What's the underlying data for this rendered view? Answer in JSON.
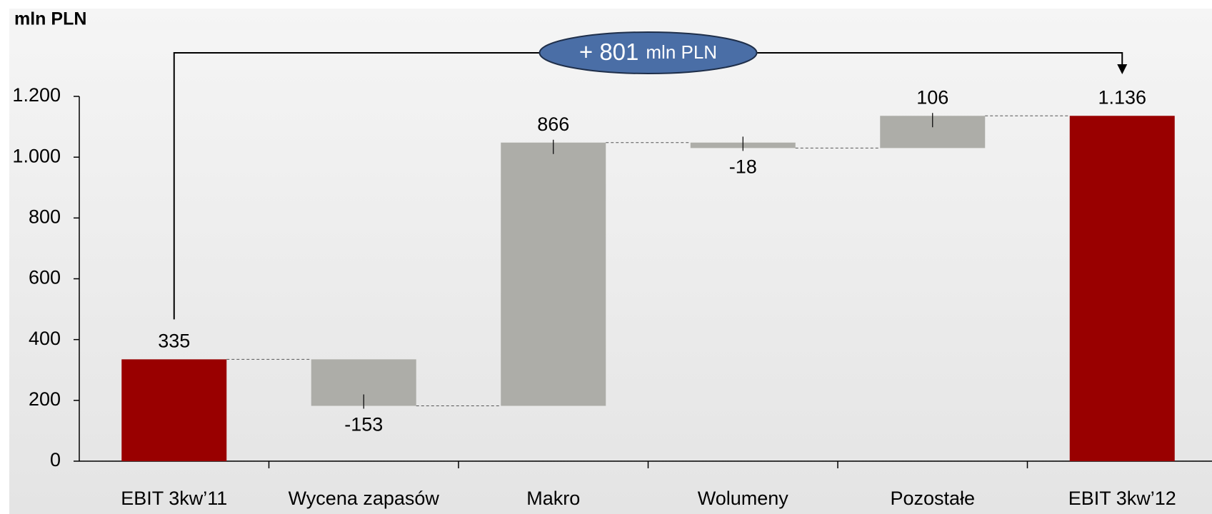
{
  "chart_data": {
    "type": "waterfall",
    "y_label": "mln PLN",
    "categories": [
      "EBIT 3kw’11",
      "Wycena zapasów",
      "Makro",
      "Wolumeny",
      "Pozostałe",
      "EBIT 3kw’12"
    ],
    "values": [
      335,
      -153,
      866,
      -18,
      106,
      1136
    ],
    "value_labels": [
      "335",
      "-153",
      "866",
      "-18",
      "106",
      "1.136"
    ],
    "totals": [
      true,
      false,
      false,
      false,
      false,
      true
    ],
    "total_color": "#990000",
    "delta_color": "#adada8",
    "ylim": [
      0,
      1200
    ],
    "yticks": [
      0,
      200,
      400,
      600,
      800,
      {
        "value": 1000,
        "label": "1.000"
      },
      {
        "value": 1200,
        "label": "1.200"
      }
    ],
    "annotation": "+ 801",
    "annotation_unit": "mln PLN"
  }
}
